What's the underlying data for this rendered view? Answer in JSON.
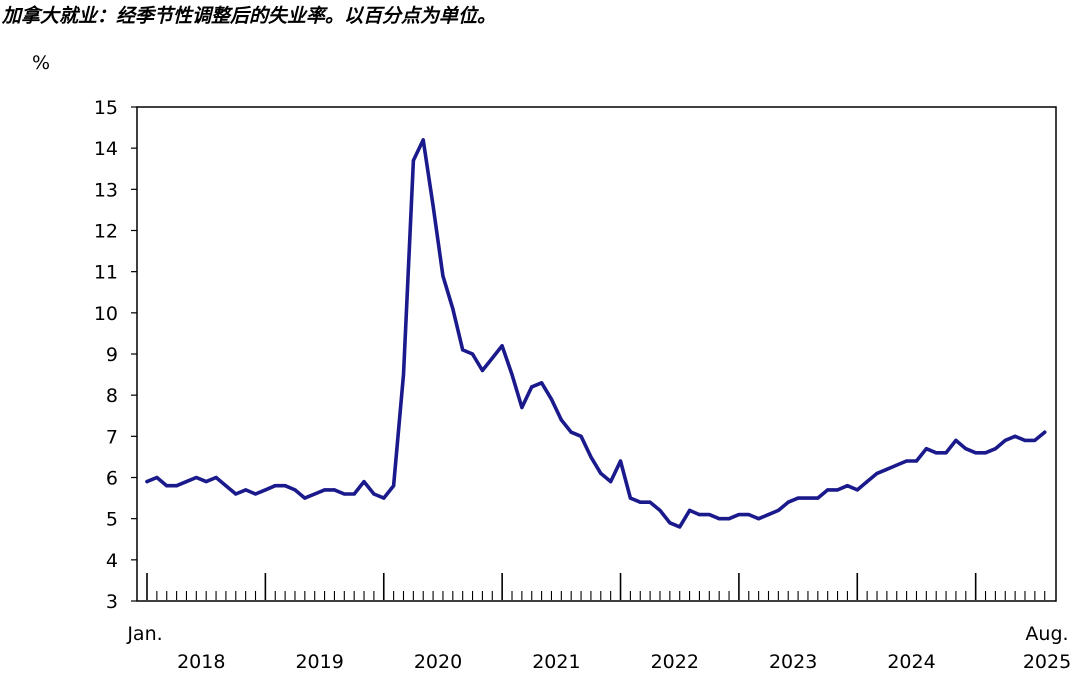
{
  "chart_data": {
    "type": "line",
    "title": "加拿大就业：经季节性调整后的失业率。以百分点为单位。",
    "ylabel": "%",
    "ylim": [
      3,
      15
    ],
    "yticks": [
      3,
      4,
      5,
      6,
      7,
      8,
      9,
      10,
      11,
      12,
      13,
      14,
      15
    ],
    "grid": false,
    "legend": "none",
    "x_start_label": "Jan.",
    "x_end_label": "Aug.",
    "year_labels": [
      "2018",
      "2019",
      "2020",
      "2021",
      "2022",
      "2023",
      "2024",
      "2025"
    ],
    "series": [
      {
        "color": "#1a1a8c",
        "x": [
          "2018-01",
          "2018-02",
          "2018-03",
          "2018-04",
          "2018-05",
          "2018-06",
          "2018-07",
          "2018-08",
          "2018-09",
          "2018-10",
          "2018-11",
          "2018-12",
          "2019-01",
          "2019-02",
          "2019-03",
          "2019-04",
          "2019-05",
          "2019-06",
          "2019-07",
          "2019-08",
          "2019-09",
          "2019-10",
          "2019-11",
          "2019-12",
          "2020-01",
          "2020-02",
          "2020-03",
          "2020-04",
          "2020-05",
          "2020-06",
          "2020-07",
          "2020-08",
          "2020-09",
          "2020-10",
          "2020-11",
          "2020-12",
          "2021-01",
          "2021-02",
          "2021-03",
          "2021-04",
          "2021-05",
          "2021-06",
          "2021-07",
          "2021-08",
          "2021-09",
          "2021-10",
          "2021-11",
          "2021-12",
          "2022-01",
          "2022-02",
          "2022-03",
          "2022-04",
          "2022-05",
          "2022-06",
          "2022-07",
          "2022-08",
          "2022-09",
          "2022-10",
          "2022-11",
          "2022-12",
          "2023-01",
          "2023-02",
          "2023-03",
          "2023-04",
          "2023-05",
          "2023-06",
          "2023-07",
          "2023-08",
          "2023-09",
          "2023-10",
          "2023-11",
          "2023-12",
          "2024-01",
          "2024-02",
          "2024-03",
          "2024-04",
          "2024-05",
          "2024-06",
          "2024-07",
          "2024-08",
          "2024-09",
          "2024-10",
          "2024-11",
          "2024-12",
          "2025-01",
          "2025-02",
          "2025-03",
          "2025-04",
          "2025-05",
          "2025-06",
          "2025-07",
          "2025-08"
        ],
        "values": [
          5.9,
          6.0,
          5.8,
          5.8,
          5.9,
          6.0,
          5.9,
          6.0,
          5.8,
          5.6,
          5.7,
          5.6,
          5.7,
          5.8,
          5.8,
          5.7,
          5.5,
          5.6,
          5.7,
          5.7,
          5.6,
          5.6,
          5.9,
          5.6,
          5.5,
          5.8,
          8.5,
          13.7,
          14.2,
          12.6,
          10.9,
          10.1,
          9.1,
          9.0,
          8.6,
          8.9,
          9.2,
          8.5,
          7.7,
          8.2,
          8.3,
          7.9,
          7.4,
          7.1,
          7.0,
          6.5,
          6.1,
          5.9,
          6.4,
          5.5,
          5.4,
          5.4,
          5.2,
          4.9,
          4.8,
          5.2,
          5.1,
          5.1,
          5.0,
          5.0,
          5.1,
          5.1,
          5.0,
          5.1,
          5.2,
          5.4,
          5.5,
          5.5,
          5.5,
          5.7,
          5.7,
          5.8,
          5.7,
          5.9,
          6.1,
          6.2,
          6.3,
          6.4,
          6.4,
          6.7,
          6.6,
          6.6,
          6.9,
          6.7,
          6.6,
          6.6,
          6.7,
          6.9,
          7.0,
          6.9,
          6.9,
          7.1
        ]
      }
    ]
  }
}
